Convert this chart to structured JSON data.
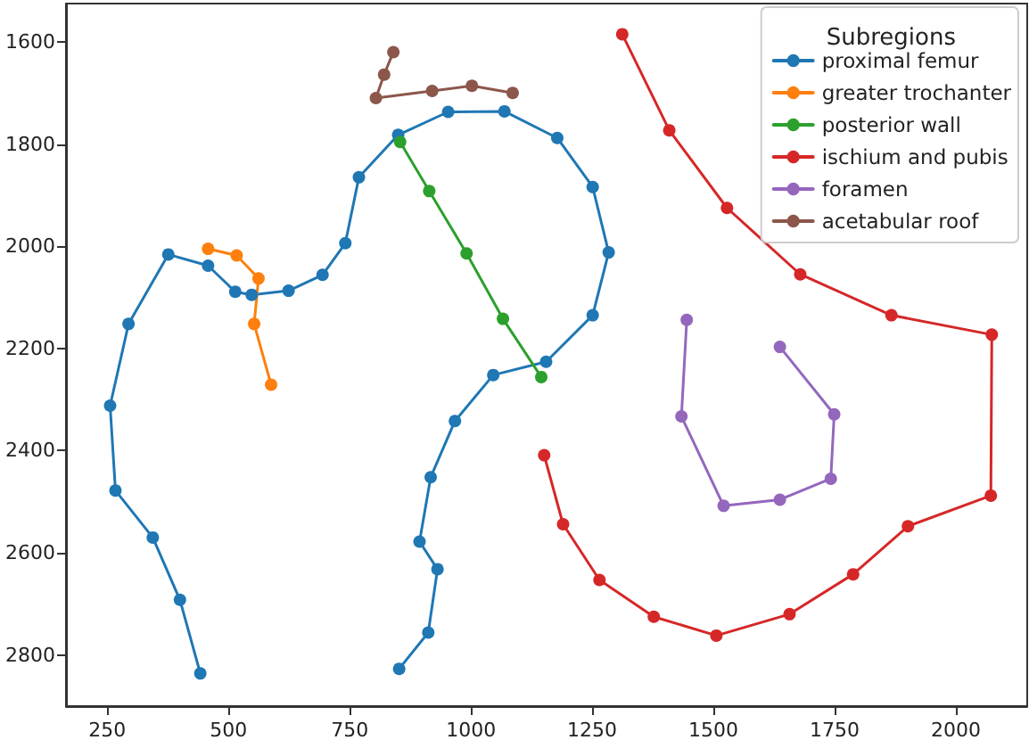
{
  "chart_data": {
    "type": "line",
    "legend_title": "Subregions",
    "legend": "top right",
    "grid": false,
    "marker": "circle",
    "line_style": "solid",
    "xlim": [
      165,
      2147
    ],
    "xticks": [
      250,
      500,
      750,
      1000,
      1250,
      1500,
      1750,
      2000
    ],
    "ylim": [
      2900,
      1525
    ],
    "yticks": [
      1600,
      1800,
      2000,
      2200,
      2400,
      2600,
      2800
    ],
    "series": [
      {
        "name": "proximal femur",
        "color": "#1f77b4",
        "x": [
          442,
          400,
          344,
          267,
          256,
          294,
          376,
          458,
          514,
          548,
          624,
          694,
          741,
          769,
          850,
          953,
          1069,
          1178,
          1251,
          1284,
          1251,
          1155,
          1046,
          967,
          917,
          894,
          931,
          912,
          852
        ],
        "values": [
          2836,
          2692,
          2570,
          2478,
          2312,
          2152,
          2016,
          2038,
          2089,
          2095,
          2087,
          2056,
          1994,
          1865,
          1782,
          1737,
          1736,
          1788,
          1884,
          2012,
          2135,
          2226,
          2252,
          2342,
          2452,
          2578,
          2632,
          2756,
          2827
        ]
      },
      {
        "name": "greater trochanter",
        "color": "#ff7f0e",
        "x": [
          458,
          517,
          562,
          553,
          588
        ],
        "values": [
          2005,
          2018,
          2063,
          2152,
          2271
        ]
      },
      {
        "name": "posterior wall",
        "color": "#2ca02c",
        "x": [
          854,
          914,
          991,
          1066,
          1145
        ],
        "values": [
          1796,
          1892,
          2014,
          2142,
          2256
        ]
      },
      {
        "name": "ischium and pubis",
        "color": "#d62728",
        "x": [
          1312,
          1409,
          1528,
          1679,
          1867,
          2074,
          2072,
          1901,
          1788,
          1657,
          1506,
          1377,
          1265,
          1190,
          1151
        ],
        "values": [
          1585,
          1773,
          1925,
          2055,
          2135,
          2173,
          2488,
          2548,
          2642,
          2720,
          2762,
          2725,
          2653,
          2544,
          2409
        ]
      },
      {
        "name": "foramen",
        "color": "#9467bd",
        "x": [
          1445,
          1434,
          1521,
          1637,
          1742,
          1749,
          1637
        ],
        "values": [
          2144,
          2333,
          2508,
          2496,
          2455,
          2329,
          2197
        ]
      },
      {
        "name": "acetabular roof",
        "color": "#8c564b",
        "x": [
          840,
          821,
          804,
          920,
          1002,
          1086
        ],
        "values": [
          1620,
          1664,
          1710,
          1696,
          1686,
          1700
        ]
      }
    ]
  }
}
